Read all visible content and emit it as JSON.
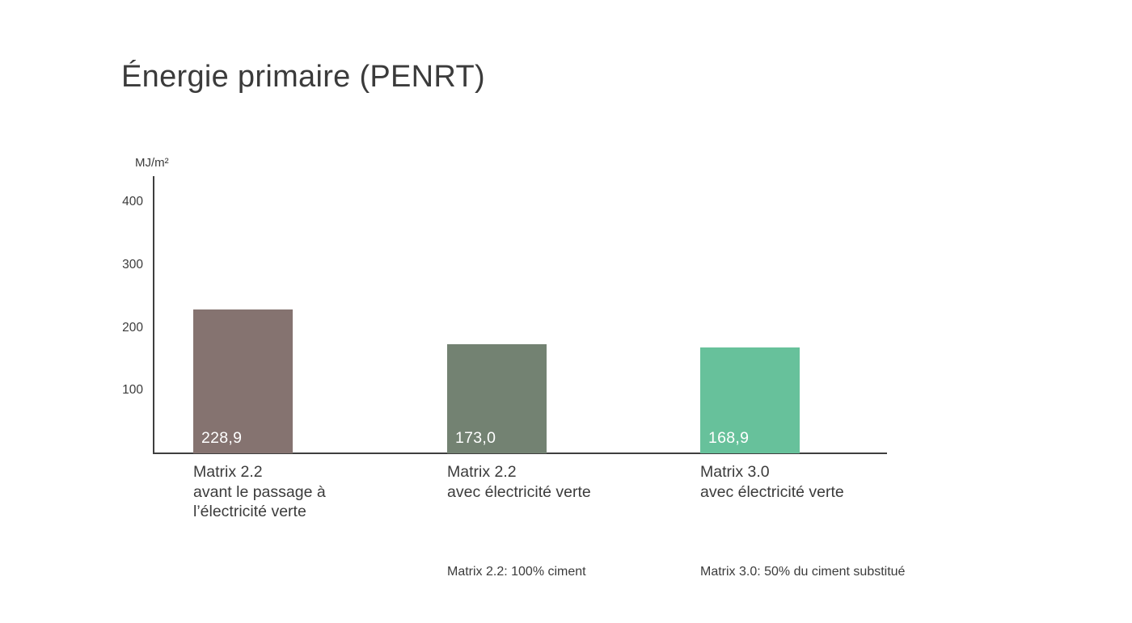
{
  "header": {
    "title": "Énergie primaire (PENRT)"
  },
  "chart_data": {
    "type": "bar",
    "title": "Énergie primaire (PENRT)",
    "ylabel": "MJ/m²",
    "unit": "MJ/m²",
    "ylim": [
      0,
      440
    ],
    "yticks": [
      100,
      200,
      300,
      400
    ],
    "grid": false,
    "legend": null,
    "axis_color": "#3f3f3f",
    "text_color": "#3b3b3b",
    "value_label_color": "#ffffff",
    "bars": [
      {
        "category_lines": [
          "Matrix 2.2",
          "avant le passage à",
          "l’électricité verte"
        ],
        "category": "Matrix 2.2 avant le passage à l’électricité verte",
        "value": 228.9,
        "display_value": "228,9",
        "color": "#857370"
      },
      {
        "category_lines": [
          "Matrix 2.2",
          "avec électricité verte"
        ],
        "category": "Matrix 2.2 avec électricité verte",
        "value": 173.0,
        "display_value": "173,0",
        "color": "#738272"
      },
      {
        "category_lines": [
          "Matrix 3.0",
          "avec électricité verte"
        ],
        "category": "Matrix 3.0 avec électricité verte",
        "value": 168.9,
        "display_value": "168,9",
        "color": "#67C19B"
      }
    ],
    "footnotes": [
      "Matrix 2.2: 100% ciment",
      "Matrix 3.0: 50% du ciment substitué"
    ]
  }
}
